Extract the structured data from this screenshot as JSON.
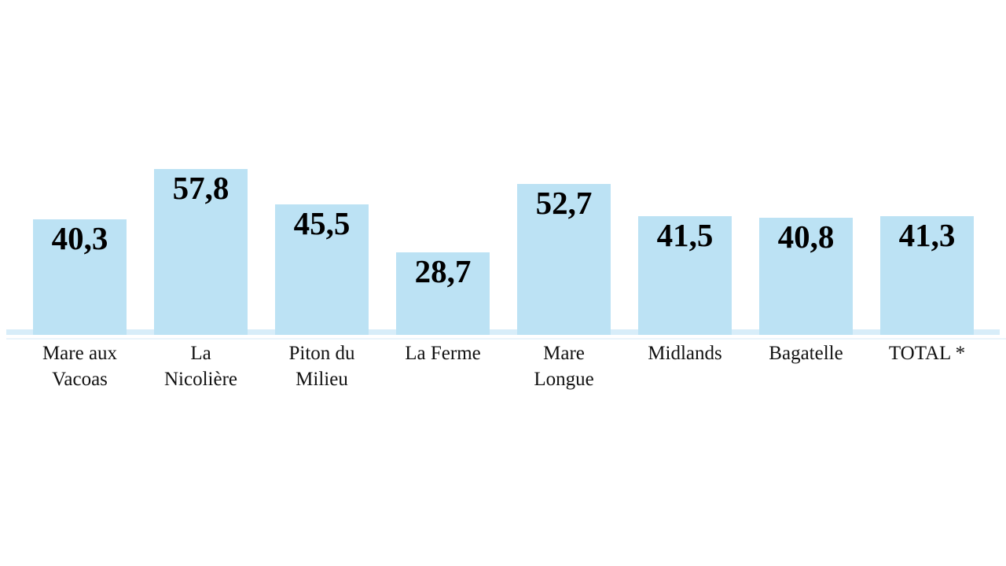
{
  "chart_data": {
    "type": "bar",
    "categories": [
      "Mare aux\nVacoas",
      "La\nNicolière",
      "Piton du\nMilieu",
      "La Ferme",
      "Mare\nLongue",
      "Midlands",
      "Bagatelle",
      "TOTAL *"
    ],
    "values": [
      40.3,
      57.8,
      45.5,
      28.7,
      52.7,
      41.5,
      40.8,
      41.3
    ],
    "value_labels": [
      "40,3",
      "57,8",
      "45,5",
      "28,7",
      "52,7",
      "41,5",
      "40,8",
      "41,3"
    ],
    "title": "",
    "xlabel": "",
    "ylabel": "",
    "ylim": [
      0,
      60
    ],
    "grid": false,
    "legend": false,
    "colors": {
      "bar_fill": "#bce2f4",
      "baseline_strip": "#d8edf9",
      "baseline_underline": "#eaf4fb",
      "value_text": "#000000",
      "category_text": "#121212"
    }
  }
}
